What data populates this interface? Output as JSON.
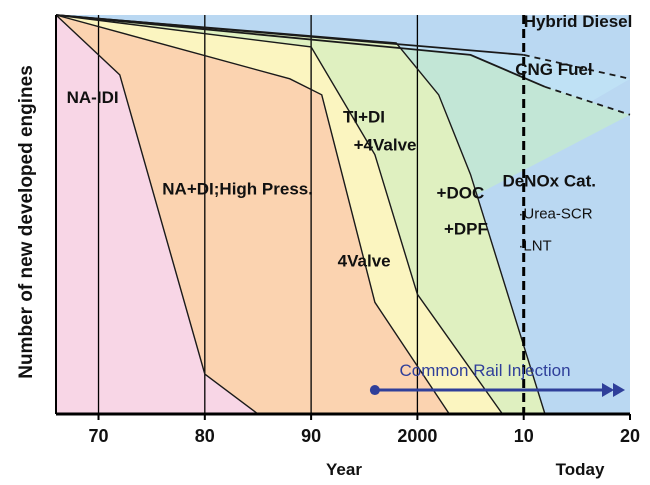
{
  "chart_data": {
    "type": "area",
    "ylabel": "Number of new developed engines",
    "xlabel": "Year",
    "x_ticks": [
      {
        "x": 1970,
        "label": "70"
      },
      {
        "x": 1980,
        "label": "80"
      },
      {
        "x": 1990,
        "label": "90"
      },
      {
        "x": 2000,
        "label": "2000"
      },
      {
        "x": 2010,
        "label": "10"
      },
      {
        "x": 2020,
        "label": "20"
      }
    ],
    "today_label": "Today",
    "today_x": 2010,
    "xlim": [
      1966,
      2020
    ],
    "ylim": [
      0,
      100
    ],
    "vertical_grid": [
      1970,
      1980,
      1990,
      2000
    ],
    "series": [
      {
        "name": "NA-IDI",
        "color": "#f8d6e6",
        "boundary": [
          [
            1966,
            100
          ],
          [
            1972,
            85
          ],
          [
            1980,
            10
          ],
          [
            1985,
            0
          ]
        ]
      },
      {
        "name": "NA+DI;High Press.",
        "color": "#fbd3b0",
        "boundary": [
          [
            1966,
            100
          ],
          [
            1988,
            84
          ],
          [
            1991,
            80
          ],
          [
            1996,
            28
          ],
          [
            2003,
            0
          ]
        ]
      },
      {
        "name": "4Valve",
        "color": "#fbf5c0",
        "boundary": [
          [
            1966,
            100
          ],
          [
            1990,
            92
          ],
          [
            1996,
            65
          ],
          [
            2000,
            30
          ],
          [
            2008,
            0
          ]
        ]
      },
      {
        "name": "+DOC +DPF",
        "color": "#dff0c0",
        "boundary": [
          [
            1966,
            100
          ],
          [
            1998,
            93
          ],
          [
            2002,
            80
          ],
          [
            2005,
            60
          ],
          [
            2012,
            0
          ]
        ]
      },
      {
        "name": "DeNOx Cat.",
        "color": "#c2e6d6",
        "boundary": [
          [
            1966,
            100
          ],
          [
            2005,
            90
          ],
          [
            2012,
            82
          ],
          [
            2020,
            75
          ]
        ]
      },
      {
        "name": "CNG Fuel",
        "color": "#bfe1f5",
        "boundary": [
          [
            1966,
            100
          ],
          [
            2010,
            90
          ],
          [
            2020,
            84
          ]
        ]
      },
      {
        "name": "Hybrid Diesel",
        "color": "#bad8f2",
        "boundary": []
      }
    ],
    "dividers": [
      {
        "points": [
          [
            1966,
            100
          ],
          [
            1972,
            85
          ],
          [
            1980,
            10
          ],
          [
            1985,
            0
          ]
        ],
        "dashed_from": null
      },
      {
        "points": [
          [
            1966,
            100
          ],
          [
            1988,
            84
          ],
          [
            1991,
            80
          ],
          [
            1996,
            28
          ],
          [
            2003,
            0
          ]
        ],
        "dashed_from": null
      },
      {
        "points": [
          [
            1966,
            100
          ],
          [
            1990,
            92
          ],
          [
            1996,
            65
          ],
          [
            2000,
            30
          ],
          [
            2008,
            0
          ]
        ],
        "dashed_from": null
      },
      {
        "points": [
          [
            1966,
            100
          ],
          [
            1998,
            93
          ],
          [
            2002,
            80
          ],
          [
            2005,
            60
          ],
          [
            2012,
            0
          ]
        ],
        "dashed_from": null
      },
      {
        "points": [
          [
            1966,
            100
          ],
          [
            2005,
            90
          ],
          [
            2012,
            82
          ],
          [
            2020,
            75
          ]
        ],
        "dashed_from": 2012
      },
      {
        "points": [
          [
            1966,
            100
          ],
          [
            2010,
            90
          ],
          [
            2020,
            84
          ]
        ],
        "dashed_from": 2010
      }
    ],
    "region_labels": [
      {
        "text": "NA-IDI",
        "x": 1967,
        "y": 78
      },
      {
        "text": "NA+DI;High Press.",
        "x": 1976,
        "y": 55
      },
      {
        "text": "TI+DI",
        "x": 1993,
        "y": 73
      },
      {
        "text": "+4Valve",
        "x": 1994,
        "y": 66
      },
      {
        "text": "4Valve",
        "x": 1992.5,
        "y": 37
      },
      {
        "text": "+DOC",
        "x": 2001.8,
        "y": 54
      },
      {
        "text": "+DPF",
        "x": 2002.5,
        "y": 45
      },
      {
        "text": "DeNOx Cat.",
        "x": 2008,
        "y": 57
      },
      {
        "text": "·Urea-SCR",
        "x": 2009.5,
        "y": 49
      },
      {
        "text": "·LNT",
        "x": 2009.5,
        "y": 41
      },
      {
        "text": "CNG Fuel",
        "x": 2009.2,
        "y": 85
      },
      {
        "text": "Hybrid Diesel",
        "x": 2010,
        "y": 97
      }
    ],
    "annotation": {
      "text": "Common Rail Injection",
      "start_x": 1996,
      "end_x": 2020,
      "y": 6,
      "label_x": 1997,
      "color": "#2f3f9a"
    },
    "colors": {
      "axis": "#000000",
      "divider": "#1a1a1a",
      "today_line": "#000000",
      "text": "#111111"
    }
  }
}
